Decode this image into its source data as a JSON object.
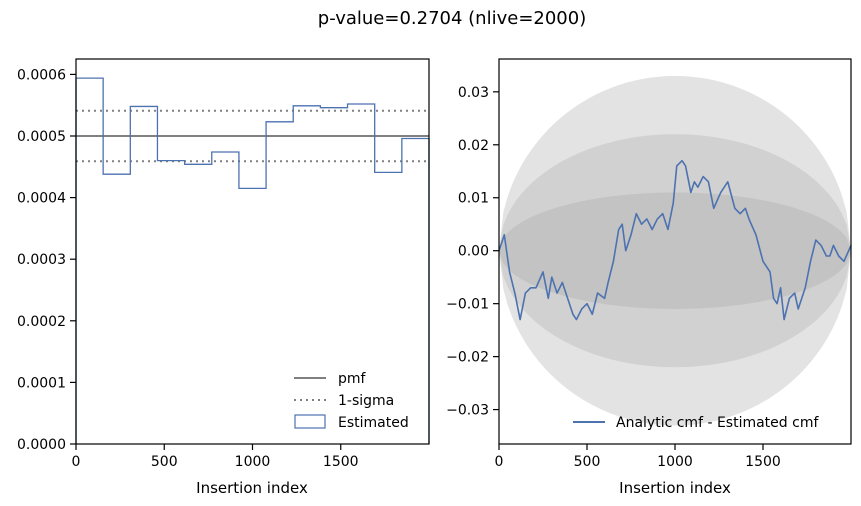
{
  "chart_data": [
    {
      "type": "bar",
      "title": "p-value=0.2704 (nlive=2000)",
      "xlabel": "Insertion index",
      "ylabel": "",
      "xlim": [
        0,
        2000
      ],
      "ylim": [
        0,
        0.000625
      ],
      "xticks": [
        "0",
        "500",
        "1000",
        "1500"
      ],
      "xtick_values": [
        0,
        500,
        1000,
        1500
      ],
      "yticks": [
        "0.0000",
        "0.0001",
        "0.0002",
        "0.0003",
        "0.0004",
        "0.0005",
        "0.0006"
      ],
      "ytick_values": [
        0,
        0.0001,
        0.0002,
        0.0003,
        0.0004,
        0.0005,
        0.0006
      ],
      "pmf": 0.0005,
      "sigma_upper": 0.000541,
      "sigma_lower": 0.000459,
      "bin_edges": [
        0,
        153.8,
        307.7,
        461.5,
        615.4,
        769.2,
        923.1,
        1076.9,
        1230.8,
        1384.6,
        1538.5,
        1692.3,
        1846.2,
        2000
      ],
      "values": [
        0.000594,
        0.000438,
        0.000548,
        0.00046,
        0.000454,
        0.000474,
        0.000415,
        0.000523,
        0.000549,
        0.000546,
        0.000552,
        0.000441,
        0.000496
      ],
      "legend": [
        "pmf",
        "1-sigma",
        "Estimated"
      ],
      "legend_loc": "lower right",
      "colors": {
        "pmf": "#808080",
        "sigma": "#808080",
        "estimated": "#4c72b0"
      }
    },
    {
      "type": "line",
      "xlabel": "Insertion index",
      "ylabel": "",
      "xlim": [
        0,
        2000
      ],
      "ylim": [
        -0.0365,
        0.0362
      ],
      "xticks": [
        "0",
        "500",
        "1000",
        "1500"
      ],
      "xtick_values": [
        0,
        500,
        1000,
        1500
      ],
      "yticks": [
        "−0.03",
        "−0.02",
        "−0.01",
        "0.00",
        "0.01",
        "0.02",
        "0.03"
      ],
      "ytick_values": [
        -0.03,
        -0.02,
        -0.01,
        0,
        0.01,
        0.02,
        0.03
      ],
      "sigma_bands": [
        0.011,
        0.022,
        0.033
      ],
      "band_colors": [
        "#c3c3c3",
        "#d1d1d1",
        "#e3e3e3"
      ],
      "series": [
        {
          "name": "Analytic cmf - Estimated cmf",
          "color": "#4c72b0",
          "x": [
            0,
            30,
            60,
            90,
            120,
            150,
            180,
            210,
            250,
            280,
            300,
            330,
            360,
            390,
            420,
            440,
            470,
            500,
            530,
            560,
            600,
            620,
            650,
            680,
            700,
            720,
            750,
            780,
            810,
            840,
            870,
            900,
            930,
            960,
            990,
            1010,
            1040,
            1060,
            1090,
            1110,
            1130,
            1160,
            1190,
            1220,
            1260,
            1300,
            1340,
            1370,
            1400,
            1420,
            1460,
            1500,
            1540,
            1560,
            1580,
            1600,
            1620,
            1650,
            1680,
            1700,
            1720,
            1740,
            1770,
            1800,
            1830,
            1860,
            1880,
            1900,
            1930,
            1960,
            2000
          ],
          "y": [
            0.0,
            0.003,
            -0.004,
            -0.008,
            -0.013,
            -0.008,
            -0.007,
            -0.007,
            -0.004,
            -0.009,
            -0.005,
            -0.008,
            -0.006,
            -0.009,
            -0.012,
            -0.013,
            -0.011,
            -0.01,
            -0.012,
            -0.008,
            -0.009,
            -0.006,
            -0.002,
            0.004,
            0.005,
            0.0,
            0.003,
            0.007,
            0.005,
            0.006,
            0.004,
            0.006,
            0.007,
            0.004,
            0.009,
            0.016,
            0.017,
            0.016,
            0.011,
            0.013,
            0.012,
            0.014,
            0.013,
            0.008,
            0.011,
            0.013,
            0.008,
            0.007,
            0.008,
            0.006,
            0.003,
            -0.002,
            -0.004,
            -0.009,
            -0.01,
            -0.007,
            -0.013,
            -0.009,
            -0.008,
            -0.011,
            -0.009,
            -0.007,
            -0.002,
            0.002,
            0.001,
            -0.001,
            -0.001,
            0.001,
            -0.001,
            -0.002,
            0.001
          ]
        }
      ],
      "legend": [
        "Analytic cmf - Estimated cmf"
      ],
      "legend_loc": "lower right"
    }
  ]
}
